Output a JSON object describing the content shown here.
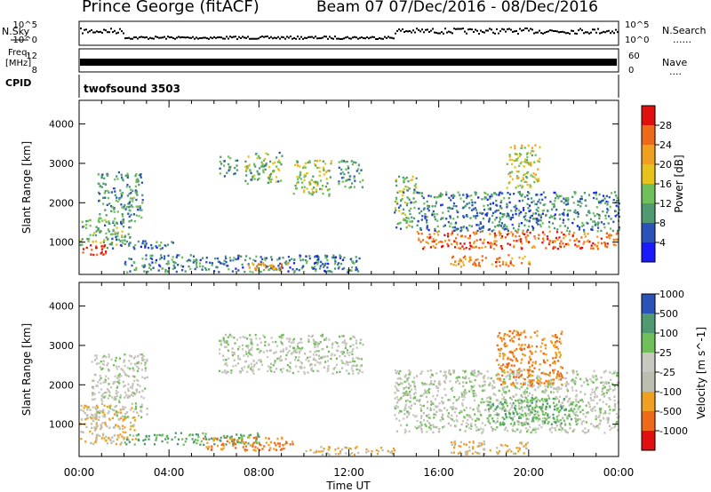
{
  "header": {
    "station": "Prince George (fitACF)",
    "beam_and_dates": "Beam 07  07/Dec/2016 - 08/Dec/2016"
  },
  "top_panels": {
    "nsky_label": "N.Sky",
    "nsearch_label": "N.Search",
    "noise_tick_high": "10^5",
    "noise_tick_low": "10^0",
    "freq_label_1": "Freq.",
    "freq_label_2": "[MHz]",
    "freq_tick_high": "12",
    "freq_tick_low": "8",
    "nave_label": "Nave",
    "nave_tick_high": "60",
    "nave_tick_low": "0",
    "cpid_label": "CPID",
    "cpid_value": "twofsound 3503",
    "dots": "......",
    "dots_short": "...."
  },
  "colors": {
    "power_scale": [
      "#1a1aff",
      "#2a52b8",
      "#4f9a70",
      "#6fc05a",
      "#e6c21a",
      "#f0a020",
      "#ef6a18",
      "#e01010"
    ],
    "velocity_scale": [
      "#e01010",
      "#ef6a18",
      "#f0a020",
      "#bdbdb0",
      "#c8c8c0",
      "#6fc05a",
      "#4f9a70",
      "#2a52b8"
    ]
  },
  "chart_data": [
    {
      "type": "heatmap",
      "ylabel": "Slant Range [km]",
      "xlabel": "",
      "xlim_hours": [
        0,
        24
      ],
      "ylim": [
        180,
        4600
      ],
      "yticks": [
        1000,
        2000,
        3000,
        4000
      ],
      "colorbar": {
        "label": "Power [dB]",
        "tick_labels": [
          "4",
          "8",
          "12",
          "16",
          "20",
          "24",
          "28"
        ],
        "range": [
          0,
          30
        ]
      },
      "echo_regions": [
        {
          "hours": [
            0.0,
            1.2
          ],
          "range_km": [
            650,
            950
          ],
          "value": 28
        },
        {
          "hours": [
            0.0,
            2.3
          ],
          "range_km": [
            950,
            1600
          ],
          "value": 12
        },
        {
          "hours": [
            0.8,
            2.8
          ],
          "range_km": [
            1500,
            2800
          ],
          "value": 10
        },
        {
          "hours": [
            1.0,
            4.2
          ],
          "range_km": [
            850,
            1050
          ],
          "value": 8
        },
        {
          "hours": [
            2.0,
            12.5
          ],
          "range_km": [
            250,
            700
          ],
          "value": 8
        },
        {
          "hours": [
            7.5,
            9.5
          ],
          "range_km": [
            280,
            500
          ],
          "value": 20
        },
        {
          "hours": [
            6.2,
            7.0
          ],
          "range_km": [
            2700,
            3200
          ],
          "value": 10
        },
        {
          "hours": [
            7.3,
            9.0
          ],
          "range_km": [
            2500,
            3300
          ],
          "value": 12
        },
        {
          "hours": [
            9.5,
            11.2
          ],
          "range_km": [
            2200,
            3100
          ],
          "value": 14
        },
        {
          "hours": [
            11.5,
            12.6
          ],
          "range_km": [
            2400,
            3100
          ],
          "value": 10
        },
        {
          "hours": [
            14.0,
            15.0
          ],
          "range_km": [
            1300,
            2700
          ],
          "value": 12
        },
        {
          "hours": [
            15.0,
            24.0
          ],
          "range_km": [
            1300,
            2300
          ],
          "value": 8
        },
        {
          "hours": [
            15.0,
            24.0
          ],
          "range_km": [
            850,
            1300
          ],
          "value": 24
        },
        {
          "hours": [
            16.5,
            20.0
          ],
          "range_km": [
            400,
            700
          ],
          "value": 22
        },
        {
          "hours": [
            19.0,
            20.5
          ],
          "range_km": [
            2400,
            3500
          ],
          "value": 16
        }
      ]
    },
    {
      "type": "heatmap",
      "ylabel": "Slant Range [km]",
      "xlabel": "Time UT",
      "xlim_hours": [
        0,
        24
      ],
      "ylim": [
        180,
        4600
      ],
      "yticks": [
        1000,
        2000,
        3000,
        4000
      ],
      "xtick_labels": [
        "00:00",
        "04:00",
        "08:00",
        "12:00",
        "16:00",
        "20:00",
        "00:00"
      ],
      "colorbar": {
        "label": "Velocity [m s^-1]",
        "tick_labels": [
          "-1000",
          "-500",
          "-100",
          "-25",
          "25",
          "100",
          "500",
          "1000"
        ],
        "range": [
          -1500,
          1500
        ]
      },
      "echo_regions": [
        {
          "hours": [
            0.0,
            2.5
          ],
          "range_km": [
            500,
            1500
          ],
          "value": -100
        },
        {
          "hours": [
            0.5,
            3.0
          ],
          "range_km": [
            1200,
            2800
          ],
          "value": 0
        },
        {
          "hours": [
            2.0,
            8.0
          ],
          "range_km": [
            500,
            800
          ],
          "value": 100
        },
        {
          "hours": [
            5.5,
            9.5
          ],
          "range_km": [
            350,
            700
          ],
          "value": -500
        },
        {
          "hours": [
            6.2,
            12.6
          ],
          "range_km": [
            2300,
            3300
          ],
          "value": 0
        },
        {
          "hours": [
            10.0,
            14.0
          ],
          "range_km": [
            250,
            450
          ],
          "value": -100
        },
        {
          "hours": [
            14.0,
            24.0
          ],
          "range_km": [
            800,
            2400
          ],
          "value": 0
        },
        {
          "hours": [
            18.0,
            22.0
          ],
          "range_km": [
            1000,
            1700
          ],
          "value": 100
        },
        {
          "hours": [
            18.5,
            21.5
          ],
          "range_km": [
            2000,
            3400
          ],
          "value": -500
        },
        {
          "hours": [
            16.5,
            20.0
          ],
          "range_km": [
            250,
            600
          ],
          "value": -100
        }
      ]
    }
  ]
}
